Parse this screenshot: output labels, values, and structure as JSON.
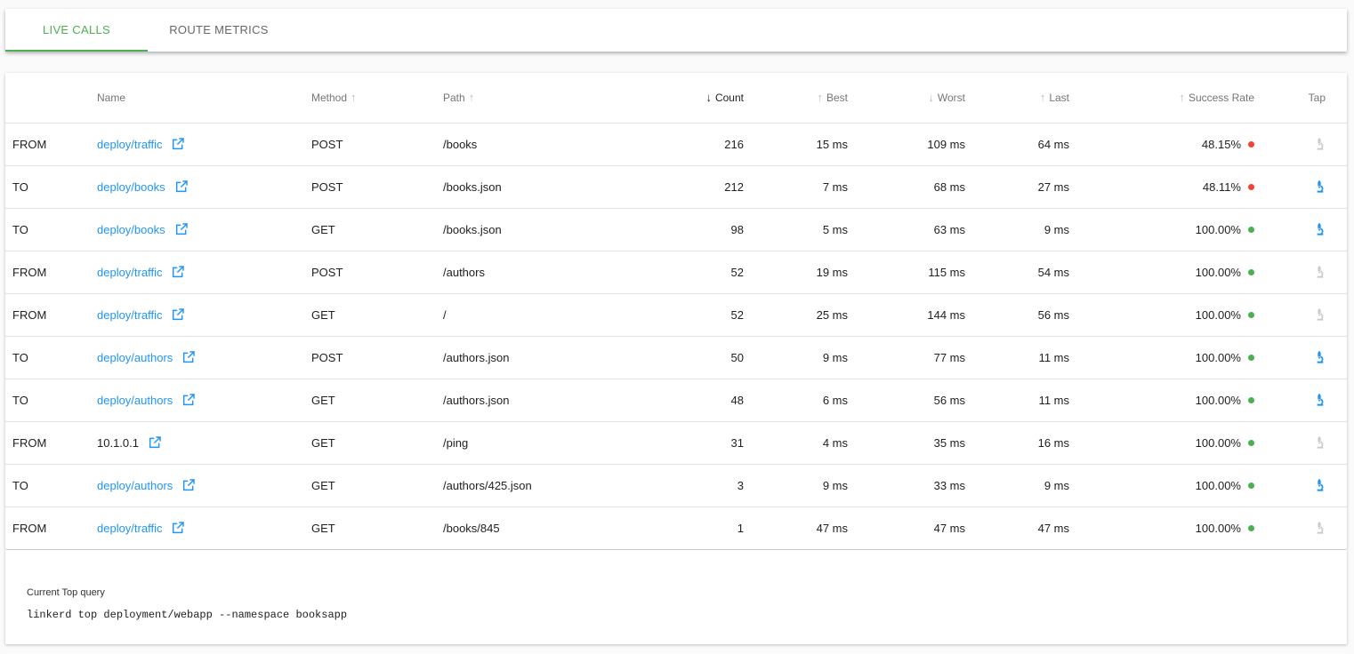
{
  "tabs": [
    {
      "label": "LIVE CALLS",
      "active": true
    },
    {
      "label": "ROUTE METRICS",
      "active": false
    }
  ],
  "columns": {
    "direction": "",
    "name": "Name",
    "method": "Method",
    "path": "Path",
    "count": "Count",
    "best": "Best",
    "worst": "Worst",
    "last": "Last",
    "success_rate": "Success Rate",
    "tap": "Tap"
  },
  "sort": {
    "column": "count",
    "direction": "descending"
  },
  "colors": {
    "accent": "#4caf50",
    "link": "#2196f3",
    "error": "#f44336",
    "ok": "#4caf50",
    "tap_disabled": "#cccccc"
  },
  "rows": [
    {
      "direction": "FROM",
      "name": "deploy/traffic",
      "method": "POST",
      "path": "/books",
      "count": "216",
      "best": "15 ms",
      "worst": "109 ms",
      "last": "64 ms",
      "success_rate": "48.15%",
      "status": "error",
      "tap_enabled": false
    },
    {
      "direction": "TO",
      "name": "deploy/books",
      "method": "POST",
      "path": "/books.json",
      "count": "212",
      "best": "7 ms",
      "worst": "68 ms",
      "last": "27 ms",
      "success_rate": "48.11%",
      "status": "error",
      "tap_enabled": true
    },
    {
      "direction": "TO",
      "name": "deploy/books",
      "method": "GET",
      "path": "/books.json",
      "count": "98",
      "best": "5 ms",
      "worst": "63 ms",
      "last": "9 ms",
      "success_rate": "100.00%",
      "status": "ok",
      "tap_enabled": true
    },
    {
      "direction": "FROM",
      "name": "deploy/traffic",
      "method": "POST",
      "path": "/authors",
      "count": "52",
      "best": "19 ms",
      "worst": "115 ms",
      "last": "54 ms",
      "success_rate": "100.00%",
      "status": "ok",
      "tap_enabled": false
    },
    {
      "direction": "FROM",
      "name": "deploy/traffic",
      "method": "GET",
      "path": "/",
      "count": "52",
      "best": "25 ms",
      "worst": "144 ms",
      "last": "56 ms",
      "success_rate": "100.00%",
      "status": "ok",
      "tap_enabled": false
    },
    {
      "direction": "TO",
      "name": "deploy/authors",
      "method": "POST",
      "path": "/authors.json",
      "count": "50",
      "best": "9 ms",
      "worst": "77 ms",
      "last": "11 ms",
      "success_rate": "100.00%",
      "status": "ok",
      "tap_enabled": true
    },
    {
      "direction": "TO",
      "name": "deploy/authors",
      "method": "GET",
      "path": "/authors.json",
      "count": "48",
      "best": "6 ms",
      "worst": "56 ms",
      "last": "11 ms",
      "success_rate": "100.00%",
      "status": "ok",
      "tap_enabled": true
    },
    {
      "direction": "FROM",
      "name": "10.1.0.1",
      "method": "GET",
      "path": "/ping",
      "count": "31",
      "best": "4 ms",
      "worst": "35 ms",
      "last": "16 ms",
      "success_rate": "100.00%",
      "status": "ok",
      "tap_enabled": false,
      "plain_name": true
    },
    {
      "direction": "TO",
      "name": "deploy/authors",
      "method": "GET",
      "path": "/authors/425.json",
      "count": "3",
      "best": "9 ms",
      "worst": "33 ms",
      "last": "9 ms",
      "success_rate": "100.00%",
      "status": "ok",
      "tap_enabled": true
    },
    {
      "direction": "FROM",
      "name": "deploy/traffic",
      "method": "GET",
      "path": "/books/845",
      "count": "1",
      "best": "47 ms",
      "worst": "47 ms",
      "last": "47 ms",
      "success_rate": "100.00%",
      "status": "ok",
      "tap_enabled": false
    }
  ],
  "footer": {
    "label": "Current Top query",
    "query": "linkerd top deployment/webapp --namespace booksapp"
  }
}
